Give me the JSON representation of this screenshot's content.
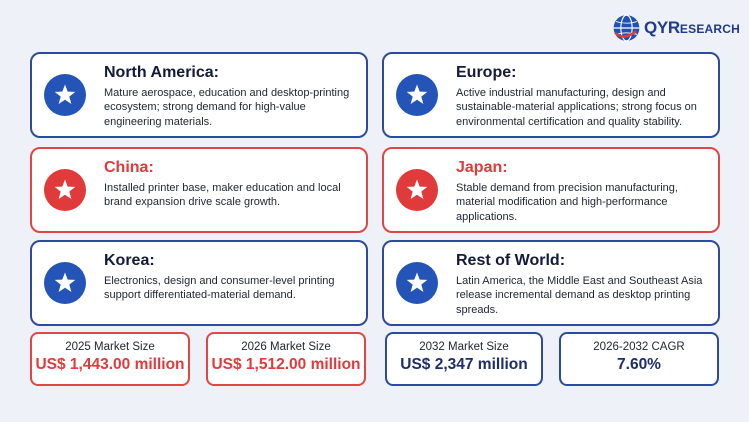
{
  "brand": {
    "name_main": "QYR",
    "name_sub": "ESEARCH"
  },
  "regions": [
    {
      "title": "North America:",
      "description": "Mature aerospace, education and desktop-printing ecosystem; strong demand for high-value engineering materials.",
      "accent": "blue",
      "icon": "star-icon"
    },
    {
      "title": "Europe:",
      "description": "Active industrial manufacturing, design and sustainable-material applications; strong focus on environmental certification and quality stability.",
      "accent": "blue",
      "icon": "star-icon"
    },
    {
      "title": "China:",
      "description": "Installed printer base, maker education and local brand expansion drive scale growth.",
      "accent": "red",
      "icon": "star-icon"
    },
    {
      "title": "Japan:",
      "description": "Stable demand from precision manufacturing, material modification and high-performance applications.",
      "accent": "red",
      "icon": "star-icon"
    },
    {
      "title": "Korea:",
      "description": "Electronics, design and consumer-level printing support differentiated-material demand.",
      "accent": "blue",
      "icon": "star-icon"
    },
    {
      "title": "Rest of World:",
      "description": "Latin America, the Middle East and Southeast Asia release incremental demand as desktop printing spreads.",
      "accent": "blue",
      "icon": "star-icon"
    }
  ],
  "stats": [
    {
      "label": "2025 Market Size",
      "value": "US$ 1,443.00 million",
      "accent": "red"
    },
    {
      "label": "2026 Market Size",
      "value": "US$ 1,512.00 million",
      "accent": "red"
    },
    {
      "label": "2032 Market Size",
      "value": "US$ 2,347 million",
      "accent": "blue"
    },
    {
      "label": "2026-2032 CAGR",
      "value": "7.60%",
      "accent": "blue"
    }
  ],
  "colors": {
    "blue": "#2c4aa0",
    "red": "#e04646",
    "background": "#eef1f7"
  }
}
